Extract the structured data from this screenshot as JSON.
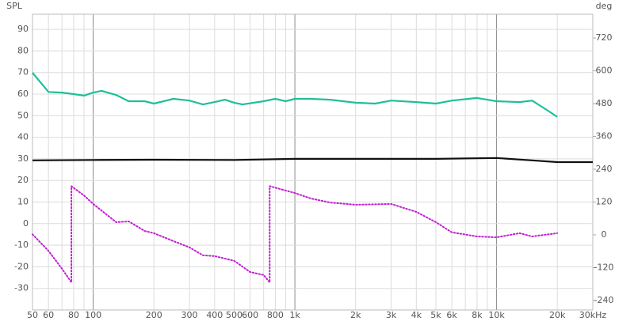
{
  "chart_data": {
    "type": "line",
    "ylabel": "SPL",
    "y2label": "deg",
    "xscale": "log",
    "xlim": [
      50,
      30000
    ],
    "ylim": [
      -40,
      97
    ],
    "y2lim": [
      -275,
      807
    ],
    "xticks": [
      50,
      60,
      80,
      100,
      200,
      300,
      400,
      500,
      600,
      800,
      {
        "value": 1000,
        "label": "1k"
      },
      {
        "value": 2000,
        "label": "2k"
      },
      {
        "value": 3000,
        "label": "3k"
      },
      {
        "value": 4000,
        "label": "4k"
      },
      {
        "value": 5000,
        "label": "5k"
      },
      {
        "value": 6000,
        "label": "6k"
      },
      {
        "value": 8000,
        "label": "8k"
      },
      {
        "value": 10000,
        "label": "10k"
      },
      {
        "value": 20000,
        "label": "20k"
      },
      {
        "value": 30000,
        "label": "30kHz"
      }
    ],
    "x_minor_ticks": [
      70,
      90,
      700,
      900,
      7000,
      9000
    ],
    "yticks": [
      -30,
      -20,
      -10,
      0,
      10,
      20,
      30,
      40,
      50,
      60,
      70,
      80,
      90
    ],
    "y2ticks": [
      -240,
      -120,
      0,
      120,
      240,
      360,
      480,
      600,
      720
    ],
    "grid": true,
    "series": [
      {
        "color": "#1fbf9a",
        "style": "solid",
        "x": [
          50,
          60,
          70,
          80,
          90,
          100,
          110,
          130,
          150,
          180,
          200,
          250,
          300,
          350,
          400,
          450,
          500,
          550,
          700,
          800,
          900,
          1000,
          1200,
          1500,
          2000,
          2500,
          3000,
          4000,
          5000,
          6000,
          8000,
          10000,
          13000,
          15000,
          18000,
          20000
        ],
        "values": [
          69.9,
          61,
          60.7,
          60,
          59.3,
          60.7,
          61.5,
          59.6,
          56.7,
          56.7,
          55.6,
          57.8,
          57,
          55.2,
          56.3,
          57.4,
          56,
          55.2,
          56.7,
          57.8,
          56.7,
          57.8,
          57.8,
          57.4,
          56,
          55.6,
          57,
          56.3,
          55.6,
          57,
          58.2,
          56.7,
          56.3,
          57,
          52.3,
          49.4
        ]
      },
      {
        "color": "#111111",
        "style": "solid",
        "x": [
          50,
          100,
          200,
          500,
          1000,
          2000,
          5000,
          10000,
          15000,
          20000,
          30000
        ],
        "values": [
          29.3,
          29.5,
          29.6,
          29.5,
          30,
          30,
          30,
          30.4,
          29.3,
          28.5,
          28.5
        ]
      },
      {
        "color": "#c020d0",
        "style": "dotted",
        "axis": "y2",
        "x": [
          50,
          60,
          70,
          78,
          78,
          90,
          100,
          130,
          150,
          180,
          200,
          250,
          300,
          350,
          400,
          500,
          600,
          700,
          750,
          750,
          900,
          1000,
          1200,
          1500,
          2000,
          3000,
          4000,
          5000,
          6000,
          8000,
          10000,
          13000,
          15000,
          20000
        ],
        "values": [
          2,
          -59,
          -124,
          -174,
          178,
          144,
          113,
          46,
          49,
          14,
          6,
          -23,
          -46,
          -75,
          -78,
          -95,
          -136,
          -147,
          -174,
          178,
          162,
          153,
          133,
          118,
          110,
          113,
          84,
          46,
          9,
          -6,
          -9,
          6,
          -6,
          6
        ]
      }
    ]
  }
}
